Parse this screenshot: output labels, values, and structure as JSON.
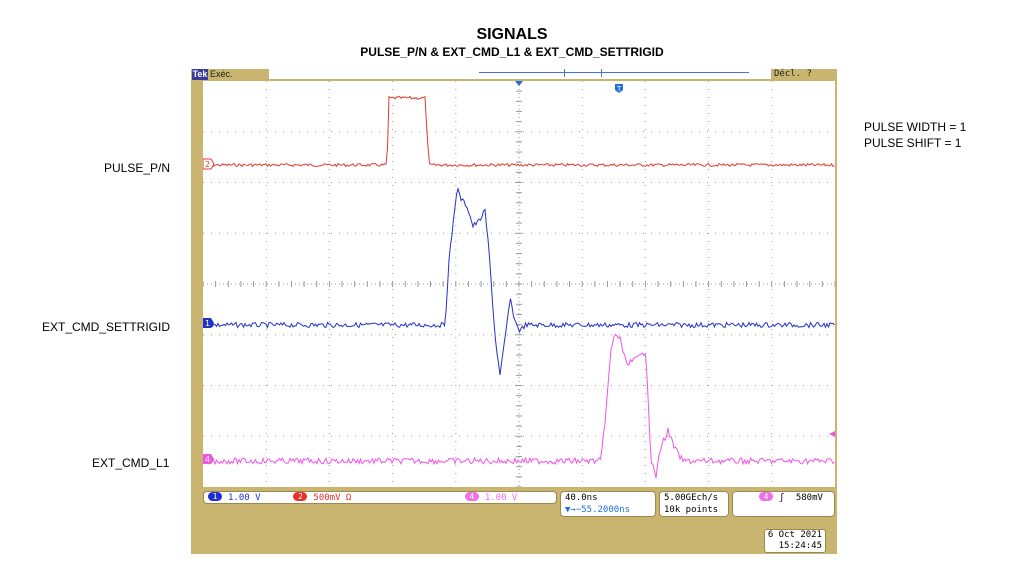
{
  "header": {
    "title": "SIGNALS",
    "subtitle": "PULSE_P/N & EXT_CMD_L1 & EXT_CMD_SETTRIGID"
  },
  "channel_labels": {
    "pulse": "PULSE_P/N",
    "settrig": "EXT_CMD_SETTRIGID",
    "l1": "EXT_CMD_L1"
  },
  "notes": {
    "pulse_width": "PULSE WIDTH = 1",
    "pulse_shift": "PULSE SHIFT = 1"
  },
  "scope": {
    "logo": "Tek",
    "acquisition": "Exéc.",
    "trigger_state": "Décl. ?",
    "trigger_marker": "T",
    "markers": {
      "ch1": "1",
      "ch2": "2",
      "ch4": "4"
    },
    "channels": [
      {
        "num": "1",
        "scale": "1.00 V",
        "color": "#1e2fd0"
      },
      {
        "num": "2",
        "scale": "500mV Ω",
        "color": "#e8302a"
      },
      {
        "num": "4",
        "scale": "1.00 V",
        "color": "#f070e8"
      }
    ],
    "timebase": {
      "scale": "40.0ns",
      "position": "▼→−55.2000ns"
    },
    "sampling": {
      "rate": "5.00GEch/s",
      "points": "10k points"
    },
    "trigger": {
      "source": "4",
      "slope": "ʃ",
      "level": "580mV"
    },
    "date": "6 Oct  2021",
    "time": "15:24:45"
  },
  "colors": {
    "ch1": "#2333c8",
    "ch2": "#e23a30",
    "ch4": "#f055e8",
    "bezel": "#c9b56f"
  }
}
